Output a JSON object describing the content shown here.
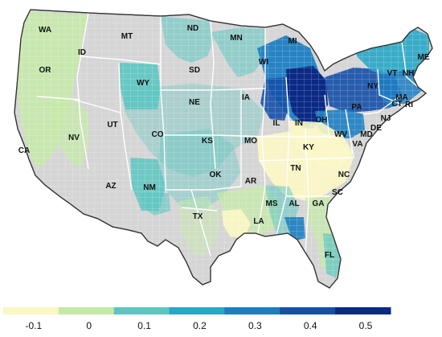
{
  "map": {
    "palette": [
      "#fbf7c5",
      "#c5eaa8",
      "#5cc6c1",
      "#2aa7c7",
      "#1e7ec2",
      "#1550a8",
      "#0b2a86"
    ],
    "base_color": "#d5d5d5",
    "state_labels": [
      "WA",
      "MT",
      "ND",
      "MN",
      "MI",
      "ME",
      "OR",
      "ID",
      "SD",
      "WI",
      "VT",
      "NH",
      "NY",
      "WY",
      "MA",
      "CT",
      "RI",
      "IA",
      "PA",
      "NJ",
      "NE",
      "OH",
      "DE",
      "MD",
      "UT",
      "IL",
      "IN",
      "WV",
      "VA",
      "NV",
      "CA",
      "CO",
      "KS",
      "MO",
      "KY",
      "OK",
      "TN",
      "NC",
      "AZ",
      "NM",
      "AR",
      "SC",
      "MS",
      "AL",
      "GA",
      "TX",
      "LA",
      "FL"
    ]
  },
  "legend": {
    "colors": [
      "#fbf7c5",
      "#c5eaa8",
      "#5cc6c1",
      "#2aa7c7",
      "#1e7ec2",
      "#1550a8",
      "#0b2a86"
    ],
    "ticks": [
      "-0.1",
      "0",
      "0.1",
      "0.2",
      "0.3",
      "0.4",
      "0.5"
    ]
  }
}
